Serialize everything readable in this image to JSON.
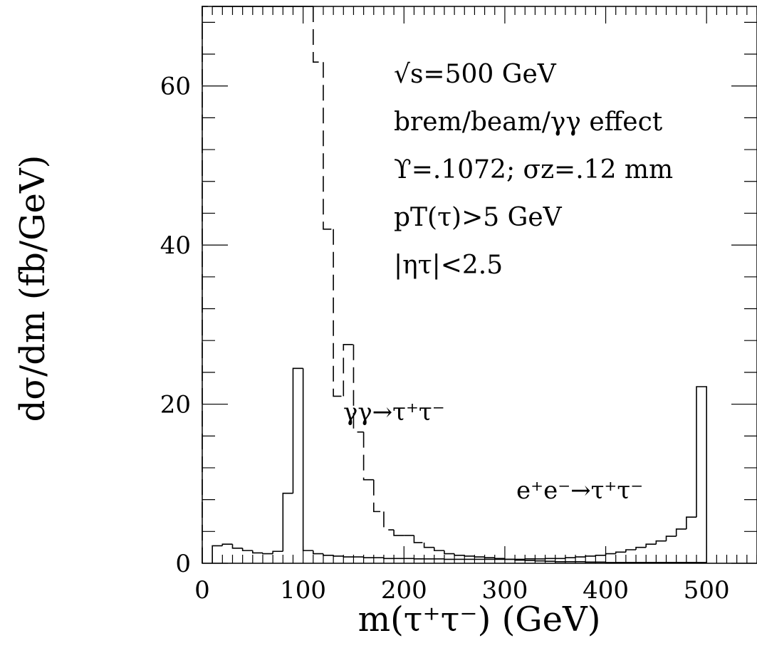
{
  "chart_data": {
    "type": "histogram",
    "ylabel": "dσ/dm  (fb/GeV)",
    "xlabel": "m(τ⁺τ⁻)  (GeV)",
    "xlim": [
      0,
      550
    ],
    "ylim": [
      0,
      70
    ],
    "x_ticks": [
      0,
      100,
      200,
      300,
      400,
      500
    ],
    "y_ticks": [
      0,
      20,
      40,
      60
    ],
    "annotations": [
      "√s=500 GeV",
      "brem/beam/γγ effect",
      "ϒ=.1072; σz=.12 mm",
      "pT(τ)>5 GeV",
      "|ητ|<2.5"
    ],
    "series": [
      {
        "name": "γγ→τ⁺τ⁻",
        "style": "dashed",
        "bins": [
          [
            0,
            10,
            70
          ],
          [
            10,
            20,
            70
          ],
          [
            20,
            30,
            70
          ],
          [
            30,
            40,
            70
          ],
          [
            40,
            50,
            70
          ],
          [
            50,
            60,
            70
          ],
          [
            60,
            70,
            70
          ],
          [
            70,
            80,
            70
          ],
          [
            80,
            90,
            70
          ],
          [
            90,
            100,
            70
          ],
          [
            100,
            110,
            70
          ],
          [
            110,
            120,
            63
          ],
          [
            120,
            130,
            42
          ],
          [
            130,
            140,
            21
          ],
          [
            140,
            150,
            27.5
          ],
          [
            150,
            160,
            16.5
          ],
          [
            160,
            170,
            10.5
          ],
          [
            170,
            180,
            6.5
          ],
          [
            180,
            190,
            4.2
          ],
          [
            190,
            200,
            3.5
          ],
          [
            200,
            210,
            3.5
          ],
          [
            210,
            220,
            2.6
          ],
          [
            220,
            230,
            2.0
          ],
          [
            230,
            240,
            1.6
          ],
          [
            240,
            250,
            1.2
          ],
          [
            250,
            260,
            1.0
          ],
          [
            260,
            270,
            0.9
          ],
          [
            270,
            280,
            0.8
          ],
          [
            280,
            290,
            0.7
          ],
          [
            290,
            300,
            0.6
          ],
          [
            300,
            310,
            0.5
          ],
          [
            310,
            320,
            0.4
          ],
          [
            320,
            330,
            0.35
          ],
          [
            330,
            340,
            0.3
          ],
          [
            340,
            350,
            0.25
          ],
          [
            350,
            360,
            0.2
          ],
          [
            360,
            370,
            0.2
          ],
          [
            370,
            380,
            0.2
          ],
          [
            380,
            390,
            0.15
          ],
          [
            390,
            400,
            0.15
          ],
          [
            400,
            410,
            0.1
          ],
          [
            410,
            420,
            0.1
          ],
          [
            420,
            430,
            0.1
          ],
          [
            430,
            440,
            0.1
          ],
          [
            440,
            450,
            0.1
          ],
          [
            450,
            460,
            0.1
          ],
          [
            460,
            470,
            0.1
          ],
          [
            470,
            480,
            0.1
          ],
          [
            480,
            490,
            0.1
          ],
          [
            490,
            500,
            0.1
          ]
        ]
      },
      {
        "name": "e⁺e⁻→τ⁺τ⁻",
        "style": "solid",
        "bins": [
          [
            10,
            20,
            2.2
          ],
          [
            20,
            30,
            2.4
          ],
          [
            30,
            40,
            1.9
          ],
          [
            40,
            50,
            1.6
          ],
          [
            50,
            60,
            1.3
          ],
          [
            60,
            70,
            1.2
          ],
          [
            70,
            80,
            1.5
          ],
          [
            80,
            90,
            8.8
          ],
          [
            90,
            100,
            24.5
          ],
          [
            100,
            110,
            1.6
          ],
          [
            110,
            120,
            1.2
          ],
          [
            120,
            130,
            1.0
          ],
          [
            130,
            140,
            0.9
          ],
          [
            140,
            150,
            0.8
          ],
          [
            150,
            160,
            0.8
          ],
          [
            160,
            170,
            0.7
          ],
          [
            170,
            180,
            0.7
          ],
          [
            180,
            190,
            0.6
          ],
          [
            190,
            200,
            0.6
          ],
          [
            200,
            210,
            0.6
          ],
          [
            210,
            220,
            0.55
          ],
          [
            220,
            230,
            0.55
          ],
          [
            230,
            240,
            0.55
          ],
          [
            240,
            250,
            0.5
          ],
          [
            250,
            260,
            0.5
          ],
          [
            260,
            270,
            0.5
          ],
          [
            270,
            280,
            0.5
          ],
          [
            280,
            290,
            0.5
          ],
          [
            290,
            300,
            0.5
          ],
          [
            300,
            310,
            0.5
          ],
          [
            310,
            320,
            0.5
          ],
          [
            320,
            330,
            0.55
          ],
          [
            330,
            340,
            0.55
          ],
          [
            340,
            350,
            0.6
          ],
          [
            350,
            360,
            0.6
          ],
          [
            360,
            370,
            0.7
          ],
          [
            370,
            380,
            0.8
          ],
          [
            380,
            390,
            0.9
          ],
          [
            390,
            400,
            1.0
          ],
          [
            400,
            410,
            1.2
          ],
          [
            410,
            420,
            1.4
          ],
          [
            420,
            430,
            1.7
          ],
          [
            430,
            440,
            2.0
          ],
          [
            440,
            450,
            2.4
          ],
          [
            450,
            460,
            2.8
          ],
          [
            460,
            470,
            3.4
          ],
          [
            470,
            480,
            4.3
          ],
          [
            480,
            490,
            5.8
          ],
          [
            490,
            500,
            22.2
          ]
        ]
      }
    ]
  }
}
